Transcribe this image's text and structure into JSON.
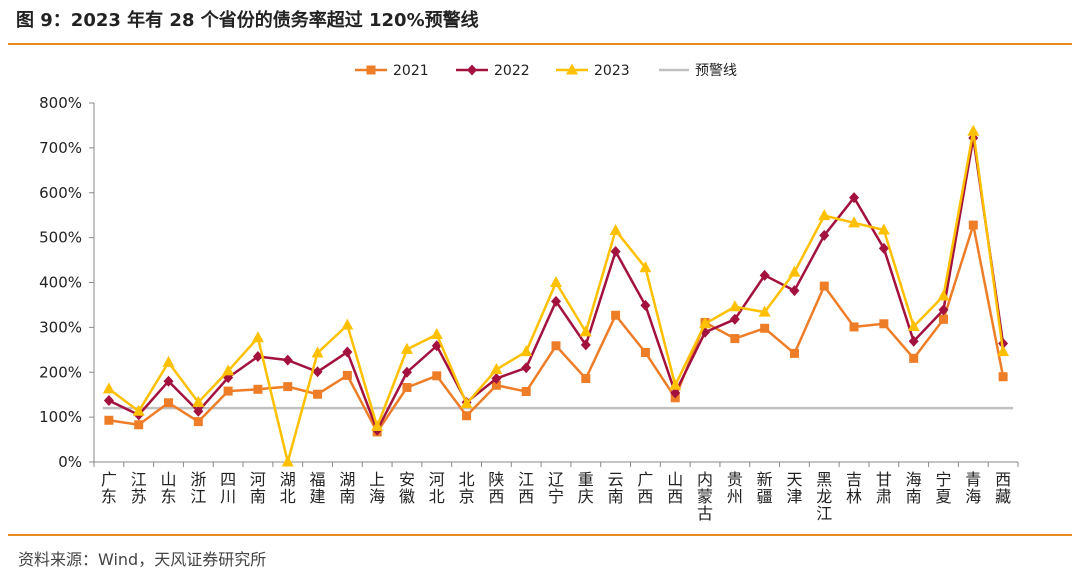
{
  "header": {
    "title": "图 9：2023 年有 28 个省份的债务率超过 120%预警线"
  },
  "footer": {
    "source": "资料来源：Wind，天风证券研究所"
  },
  "chart_data": {
    "type": "line",
    "title": "",
    "xlabel": "",
    "ylabel": "",
    "ylim": [
      0,
      800
    ],
    "y_ticks": [
      "0%",
      "100%",
      "200%",
      "300%",
      "400%",
      "500%",
      "600%",
      "700%",
      "800%"
    ],
    "y_unit": "%",
    "grid": false,
    "legend_position": "top-center",
    "categories": [
      "广东",
      "江苏",
      "山东",
      "浙江",
      "四川",
      "河南",
      "湖北",
      "福建",
      "湖南",
      "上海",
      "安徽",
      "河北",
      "北京",
      "陕西",
      "江西",
      "辽宁",
      "重庆",
      "云南",
      "广西",
      "山西",
      "内蒙古",
      "贵州",
      "新疆",
      "天津",
      "黑龙江",
      "吉林",
      "甘肃",
      "海南",
      "宁夏",
      "青海",
      "西藏"
    ],
    "series": [
      {
        "name": "2021",
        "color": "#ee7d28",
        "marker": "square",
        "values": [
          93,
          83,
          132,
          90,
          158,
          162,
          168,
          151,
          193,
          67,
          166,
          192,
          103,
          171,
          157,
          259,
          186,
          327,
          244,
          143,
          311,
          275,
          298,
          242,
          392,
          301,
          308,
          231,
          318,
          528,
          190
        ]
      },
      {
        "name": "2022",
        "color": "#a3123e",
        "marker": "diamond",
        "values": [
          137,
          105,
          180,
          113,
          188,
          235,
          227,
          201,
          245,
          71,
          200,
          259,
          133,
          186,
          210,
          358,
          261,
          469,
          349,
          154,
          289,
          318,
          416,
          382,
          505,
          589,
          476,
          269,
          339,
          722,
          264
        ]
      },
      {
        "name": "2023",
        "color": "#ffc000",
        "marker": "triangle",
        "values": [
          163,
          113,
          222,
          133,
          203,
          277,
          0,
          243,
          305,
          79,
          251,
          284,
          130,
          206,
          246,
          400,
          290,
          516,
          433,
          171,
          308,
          346,
          334,
          423,
          549,
          533,
          517,
          302,
          370,
          737,
          246
        ]
      },
      {
        "name": "预警线",
        "color": "#c0c0c0",
        "marker": "none",
        "values": [
          120,
          120,
          120,
          120,
          120,
          120,
          120,
          120,
          120,
          120,
          120,
          120,
          120,
          120,
          120,
          120,
          120,
          120,
          120,
          120,
          120,
          120,
          120,
          120,
          120,
          120,
          120,
          120,
          120,
          120,
          120
        ]
      }
    ]
  }
}
